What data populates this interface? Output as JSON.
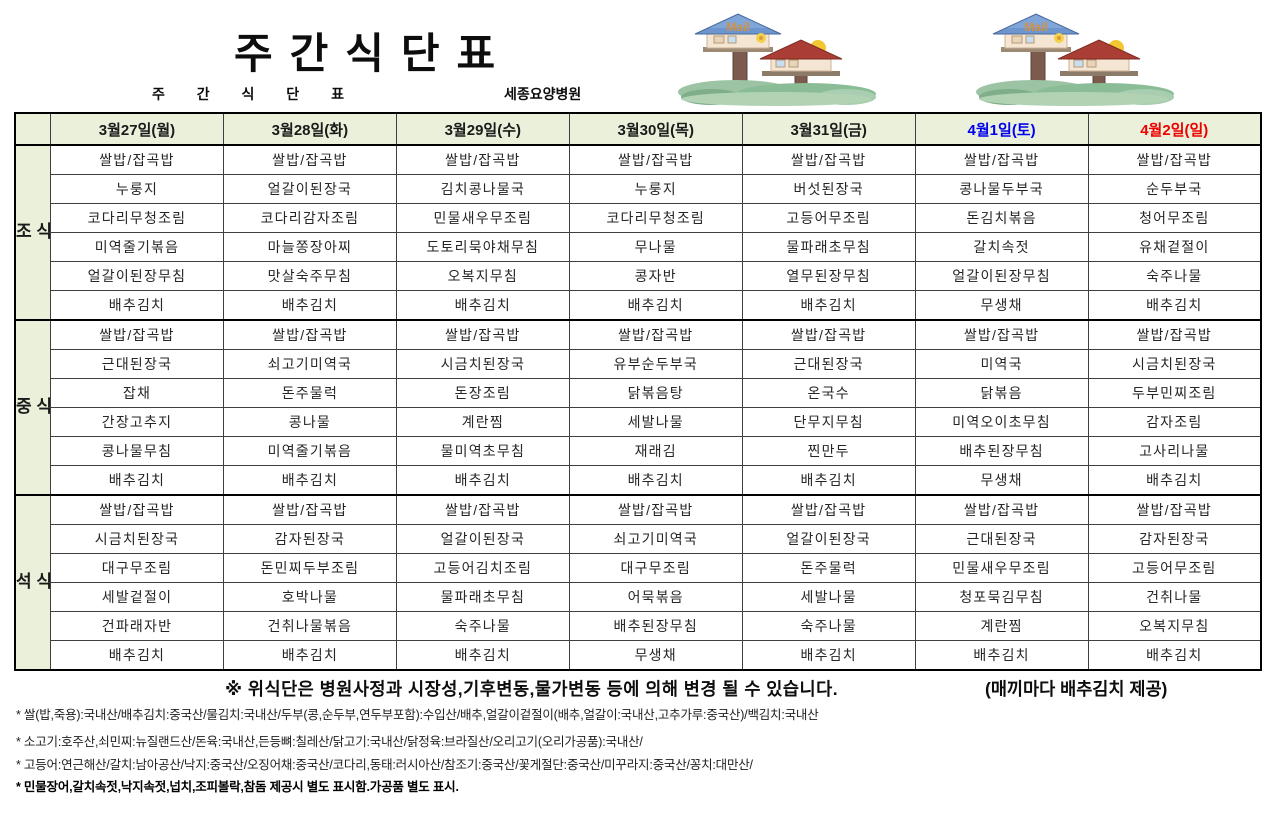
{
  "page": {
    "title": "주간식단표",
    "subtitle": "주 간 식 단 표",
    "hospital": "세종요양병원"
  },
  "decor": {
    "mailbox_icon": "mailbox-birdhouse-clipart",
    "mail_label": "Mail"
  },
  "colors": {
    "header_bg": "#eaf0da",
    "weekday_text": "#1a1a1a",
    "saturday_text": "#0000ee",
    "sunday_text": "#ee0000"
  },
  "table": {
    "days": [
      {
        "label": "3월27일(월)",
        "color": "#1a1a1a"
      },
      {
        "label": "3월28일(화)",
        "color": "#1a1a1a"
      },
      {
        "label": "3월29일(수)",
        "color": "#1a1a1a"
      },
      {
        "label": "3월30일(목)",
        "color": "#1a1a1a"
      },
      {
        "label": "3월31일(금)",
        "color": "#1a1a1a"
      },
      {
        "label": "4월1일(토)",
        "color": "#0000ee"
      },
      {
        "label": "4월2일(일)",
        "color": "#ee0000"
      }
    ],
    "sections": [
      {
        "label": "조식",
        "rows": [
          [
            "쌀밥/잡곡밥",
            "쌀밥/잡곡밥",
            "쌀밥/잡곡밥",
            "쌀밥/잡곡밥",
            "쌀밥/잡곡밥",
            "쌀밥/잡곡밥",
            "쌀밥/잡곡밥"
          ],
          [
            "누룽지",
            "얼갈이된장국",
            "김치콩나물국",
            "누룽지",
            "버섯된장국",
            "콩나물두부국",
            "순두부국"
          ],
          [
            "코다리무청조림",
            "코다리감자조림",
            "민물새우무조림",
            "코다리무청조림",
            "고등어무조림",
            "돈김치볶음",
            "청어무조림"
          ],
          [
            "미역줄기볶음",
            "마늘쫑장아찌",
            "도토리묵야채무침",
            "무나물",
            "물파래초무침",
            "갈치속젓",
            "유채겉절이"
          ],
          [
            "얼갈이된장무침",
            "맛살숙주무침",
            "오복지무침",
            "콩자반",
            "열무된장무침",
            "얼갈이된장무침",
            "숙주나물"
          ],
          [
            "배추김치",
            "배추김치",
            "배추김치",
            "배추김치",
            "배추김치",
            "무생채",
            "배추김치"
          ]
        ]
      },
      {
        "label": "중식",
        "rows": [
          [
            "쌀밥/잡곡밥",
            "쌀밥/잡곡밥",
            "쌀밥/잡곡밥",
            "쌀밥/잡곡밥",
            "쌀밥/잡곡밥",
            "쌀밥/잡곡밥",
            "쌀밥/잡곡밥"
          ],
          [
            "근대된장국",
            "쇠고기미역국",
            "시금치된장국",
            "유부순두부국",
            "근대된장국",
            "미역국",
            "시금치된장국"
          ],
          [
            "잡채",
            "돈주물럭",
            "돈장조림",
            "닭볶음탕",
            "온국수",
            "닭볶음",
            "두부민찌조림"
          ],
          [
            "간장고추지",
            "콩나물",
            "계란찜",
            "세발나물",
            "단무지무침",
            "미역오이초무침",
            "감자조림"
          ],
          [
            "콩나물무침",
            "미역줄기볶음",
            "물미역초무침",
            "재래김",
            "찐만두",
            "배추된장무침",
            "고사리나물"
          ],
          [
            "배추김치",
            "배추김치",
            "배추김치",
            "배추김치",
            "배추김치",
            "무생채",
            "배추김치"
          ]
        ]
      },
      {
        "label": "석식",
        "rows": [
          [
            "쌀밥/잡곡밥",
            "쌀밥/잡곡밥",
            "쌀밥/잡곡밥",
            "쌀밥/잡곡밥",
            "쌀밥/잡곡밥",
            "쌀밥/잡곡밥",
            "쌀밥/잡곡밥"
          ],
          [
            "시금치된장국",
            "감자된장국",
            "얼갈이된장국",
            "쇠고기미역국",
            "얼갈이된장국",
            "근대된장국",
            "감자된장국"
          ],
          [
            "대구무조림",
            "돈민찌두부조림",
            "고등어김치조림",
            "대구무조림",
            "돈주물럭",
            "민물새우무조림",
            "고등어무조림"
          ],
          [
            "세발겉절이",
            "호박나물",
            "물파래초무침",
            "어묵볶음",
            "세발나물",
            "청포묵김무침",
            "건취나물"
          ],
          [
            "건파래자반",
            "건취나물볶음",
            "숙주나물",
            "배추된장무침",
            "숙주나물",
            "계란찜",
            "오복지무침"
          ],
          [
            "배추김치",
            "배추김치",
            "배추김치",
            "무생채",
            "배추김치",
            "배추김치",
            "배추김치"
          ]
        ]
      }
    ]
  },
  "notes": {
    "change_note": "※ 위식단은 병원사정과 시장성,기후변동,물가변동 등에 의해 변경 될 수 있습니다.",
    "kimchi_note": "(매끼마다 배추김치 제공)",
    "footnotes": [
      "* 쌀(밥,죽용):국내산/배추김치:중국산/물김치:국내산/두부(콩,순두부,연두부포함):수입산/배추,얼갈이겉절이(배추,얼갈이:국내산,고추가루:중국산)/백김치:국내산",
      "* 소고기:호주산,쇠민찌:뉴질랜드산/돈육:국내산,든등뼈:칠레산/닭고기:국내산/닭정육:브라질산/오리고기(오리가공품):국내산/",
      "* 고등어:연근해산/갈치:남아공산/낙지:중국산/오징어채:중국산/코다리,동태:러시아산/참조기:중국산/꽃게절단:중국산/미꾸라지:중국산/꽁치:대만산/",
      "* 민물장어,갈치속젓,낙지속젓,넙치,조피볼락,참돔 제공시 별도 표시함.가공품 별도 표시."
    ]
  }
}
